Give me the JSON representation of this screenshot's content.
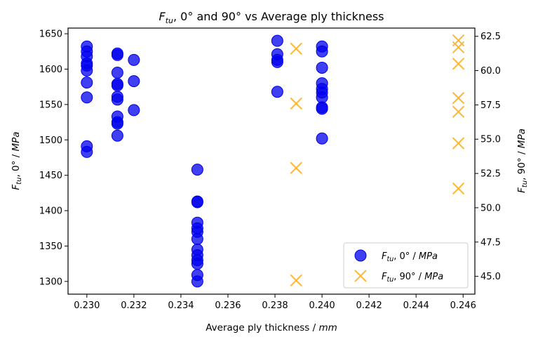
{
  "chart_data": {
    "type": "scatter",
    "title": {
      "pre": "F",
      "sub": "tu",
      "post": ", 0° and 90° vs Average ply thickness"
    },
    "xlabel": {
      "pre": "Average ply thickness / ",
      "unit": "mm"
    },
    "ylabel_left": {
      "pre": "F",
      "sub": "tu",
      "mid": ", 0° / ",
      "unit": "MPa"
    },
    "ylabel_right": {
      "pre": "F",
      "sub": "tu",
      "mid": ", 90° / ",
      "unit": "MPa"
    },
    "xlim": [
      0.2292,
      0.2465
    ],
    "ylim_left": [
      1282,
      1658
    ],
    "ylim_right": [
      43.7,
      63.1
    ],
    "x_ticks": [
      "0.230",
      "0.232",
      "0.234",
      "0.236",
      "0.238",
      "0.240",
      "0.242",
      "0.244",
      "0.246"
    ],
    "y_left_ticks": [
      "1300",
      "1350",
      "1400",
      "1450",
      "1500",
      "1550",
      "1600",
      "1650"
    ],
    "y_right_ticks": [
      "45.0",
      "47.5",
      "50.0",
      "52.5",
      "55.0",
      "57.5",
      "60.0",
      "62.5"
    ],
    "legend_position": "lower-right",
    "grid": false,
    "series": [
      {
        "name": {
          "pre": "F",
          "sub": "tu",
          "post": ", 0° / ",
          "unit": "MPa"
        },
        "axis": "left",
        "marker": "circle",
        "color": "#0000ee",
        "points": [
          [
            0.23,
            1632
          ],
          [
            0.23,
            1625
          ],
          [
            0.23,
            1618
          ],
          [
            0.23,
            1608
          ],
          [
            0.23,
            1605
          ],
          [
            0.23,
            1598
          ],
          [
            0.23,
            1581
          ],
          [
            0.23,
            1560
          ],
          [
            0.23,
            1491
          ],
          [
            0.23,
            1483
          ],
          [
            0.2313,
            1622
          ],
          [
            0.2313,
            1620
          ],
          [
            0.2313,
            1595
          ],
          [
            0.2313,
            1579
          ],
          [
            0.2313,
            1577
          ],
          [
            0.2313,
            1561
          ],
          [
            0.2313,
            1557
          ],
          [
            0.2313,
            1533
          ],
          [
            0.2313,
            1525
          ],
          [
            0.2313,
            1523
          ],
          [
            0.2313,
            1506
          ],
          [
            0.232,
            1613
          ],
          [
            0.232,
            1583
          ],
          [
            0.232,
            1542
          ],
          [
            0.2347,
            1458
          ],
          [
            0.2347,
            1413
          ],
          [
            0.2347,
            1412
          ],
          [
            0.2347,
            1383
          ],
          [
            0.2347,
            1375
          ],
          [
            0.2347,
            1370
          ],
          [
            0.2347,
            1360
          ],
          [
            0.2347,
            1345
          ],
          [
            0.2347,
            1337
          ],
          [
            0.2347,
            1330
          ],
          [
            0.2347,
            1325
          ],
          [
            0.2347,
            1309
          ],
          [
            0.2347,
            1300
          ],
          [
            0.2381,
            1640
          ],
          [
            0.2381,
            1621
          ],
          [
            0.2381,
            1613
          ],
          [
            0.2381,
            1610
          ],
          [
            0.2381,
            1568
          ],
          [
            0.24,
            1632
          ],
          [
            0.24,
            1625
          ],
          [
            0.24,
            1602
          ],
          [
            0.24,
            1580
          ],
          [
            0.24,
            1572
          ],
          [
            0.24,
            1567
          ],
          [
            0.24,
            1560
          ],
          [
            0.24,
            1546
          ],
          [
            0.24,
            1544
          ],
          [
            0.24,
            1502
          ]
        ]
      },
      {
        "name": {
          "pre": "F",
          "sub": "tu",
          "post": ", 90° / ",
          "unit": "MPa"
        },
        "axis": "right",
        "marker": "x",
        "color": "#ffb733",
        "points": [
          [
            0.2389,
            61.6
          ],
          [
            0.2389,
            57.6
          ],
          [
            0.2389,
            52.9
          ],
          [
            0.2389,
            44.7
          ],
          [
            0.2458,
            62.2
          ],
          [
            0.2458,
            61.7
          ],
          [
            0.2458,
            60.5
          ],
          [
            0.2458,
            58.0
          ],
          [
            0.2458,
            57.0
          ],
          [
            0.2458,
            54.7
          ],
          [
            0.2458,
            51.4
          ]
        ]
      }
    ]
  }
}
